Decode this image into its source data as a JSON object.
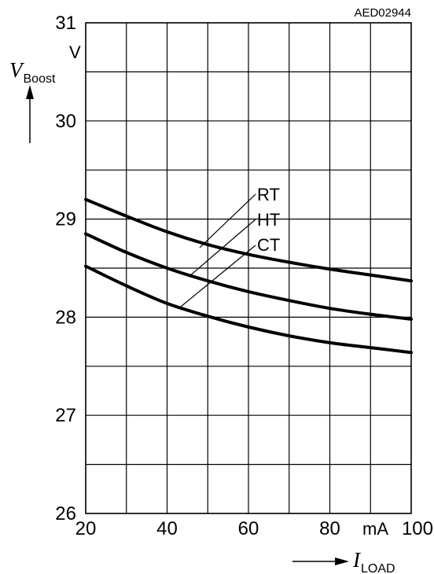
{
  "figure_code": "AED02944",
  "chart_data": {
    "type": "line",
    "x": [
      20,
      30,
      40,
      50,
      60,
      70,
      80,
      90,
      100
    ],
    "series": [
      {
        "name": "RT",
        "values": [
          29.2,
          29.03,
          28.87,
          28.74,
          28.64,
          28.56,
          28.49,
          28.43,
          28.37
        ]
      },
      {
        "name": "HT",
        "values": [
          28.85,
          28.66,
          28.5,
          28.37,
          28.26,
          28.17,
          28.09,
          28.03,
          27.98
        ]
      },
      {
        "name": "CT",
        "values": [
          28.52,
          28.32,
          28.14,
          28.01,
          27.9,
          27.81,
          27.74,
          27.69,
          27.64
        ]
      }
    ],
    "xlim": [
      20,
      100
    ],
    "ylim": [
      26,
      31
    ],
    "x_ticks": [
      "20",
      "40",
      "60",
      "80",
      "100"
    ],
    "x_unit": "mA",
    "y_ticks": [
      "26",
      "27",
      "28",
      "29",
      "30",
      "31"
    ],
    "y_unit": "V",
    "xlabel": {
      "main": "I",
      "sub": "LOAD"
    },
    "ylabel": {
      "main": "V",
      "sub": "Boost"
    },
    "grid": true
  }
}
